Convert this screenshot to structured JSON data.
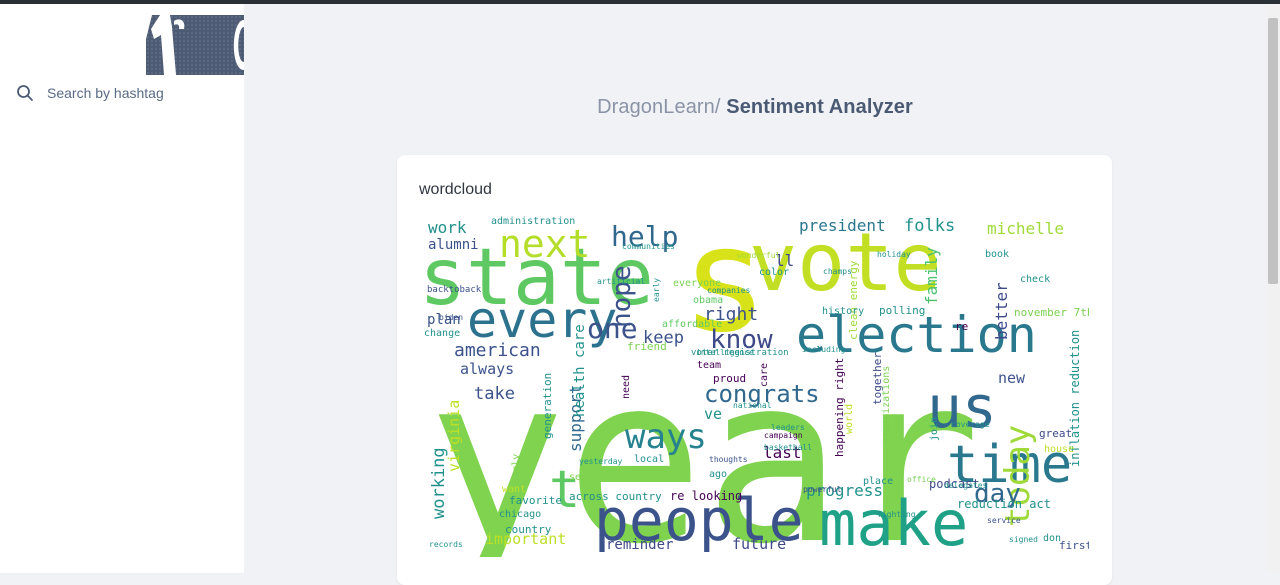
{
  "app": {
    "brand": "DragonLearn/",
    "page": "Sentiment Analyzer"
  },
  "sidebar": {
    "search": {
      "placeholder": "Search by hashtag",
      "value": ""
    }
  },
  "card": {
    "title": "wordcloud"
  },
  "wordcloud": {
    "words": [
      {
        "text": "year"
      },
      {
        "text": "s"
      },
      {
        "text": "vote"
      },
      {
        "text": "state"
      },
      {
        "text": "people"
      },
      {
        "text": "make"
      },
      {
        "text": "election"
      },
      {
        "text": "every"
      },
      {
        "text": "time"
      },
      {
        "text": "us"
      },
      {
        "text": "next"
      },
      {
        "text": "help"
      },
      {
        "text": "ways"
      },
      {
        "text": "today"
      },
      {
        "text": "day"
      },
      {
        "text": "t"
      },
      {
        "text": "know"
      },
      {
        "text": "congrats"
      },
      {
        "text": "hope"
      },
      {
        "text": "one"
      },
      {
        "text": "american"
      },
      {
        "text": "president"
      },
      {
        "text": "folks"
      },
      {
        "text": "michelle"
      },
      {
        "text": "work"
      },
      {
        "text": "alumni"
      },
      {
        "text": "plan"
      },
      {
        "text": "change"
      },
      {
        "text": "always"
      },
      {
        "text": "take"
      },
      {
        "text": "keep"
      },
      {
        "text": "right"
      },
      {
        "text": "family"
      },
      {
        "text": "better"
      },
      {
        "text": "november 7th"
      },
      {
        "text": "new"
      },
      {
        "text": "progress"
      },
      {
        "text": "reminder"
      },
      {
        "text": "future"
      },
      {
        "text": "important"
      },
      {
        "text": "working"
      },
      {
        "text": "virginia"
      },
      {
        "text": "support"
      },
      {
        "text": "health care"
      },
      {
        "text": "last"
      },
      {
        "text": "ve"
      },
      {
        "text": "ll"
      },
      {
        "text": "across country"
      },
      {
        "text": "re looking"
      },
      {
        "text": "reduction act"
      },
      {
        "text": "inflation reduction"
      },
      {
        "text": "podcast"
      },
      {
        "text": "polling"
      },
      {
        "text": "clean energy"
      },
      {
        "text": "history"
      },
      {
        "text": "affordable"
      },
      {
        "text": "obama"
      },
      {
        "text": "everyone"
      },
      {
        "text": "color"
      },
      {
        "text": "book"
      },
      {
        "text": "check"
      },
      {
        "text": "great"
      },
      {
        "text": "house"
      },
      {
        "text": "local"
      },
      {
        "text": "chicago"
      },
      {
        "text": "country"
      },
      {
        "text": "favorite"
      },
      {
        "text": "want"
      },
      {
        "text": "team"
      },
      {
        "text": "proud"
      },
      {
        "text": "ago"
      },
      {
        "text": "place"
      },
      {
        "text": "join"
      },
      {
        "text": "first"
      },
      {
        "text": "don"
      },
      {
        "text": "administration"
      },
      {
        "text": "happening right"
      },
      {
        "text": "together"
      },
      {
        "text": "generation"
      },
      {
        "text": "need"
      },
      {
        "text": "early"
      },
      {
        "text": "friend"
      },
      {
        "text": "re"
      },
      {
        "text": "voter registration"
      },
      {
        "text": "organizations"
      },
      {
        "text": "world"
      },
      {
        "text": "see"
      },
      {
        "text": "care"
      },
      {
        "text": "backtoback"
      },
      {
        "text": "biden"
      },
      {
        "text": "wonderful"
      },
      {
        "text": "holiday"
      },
      {
        "text": "champs"
      },
      {
        "text": "artificial"
      },
      {
        "text": "companies"
      },
      {
        "text": "leaders"
      },
      {
        "text": "thoughts"
      },
      {
        "text": "powerful"
      },
      {
        "text": "basketball"
      },
      {
        "text": "campaign"
      },
      {
        "text": "yesterday"
      },
      {
        "text": "including"
      },
      {
        "text": "office"
      },
      {
        "text": "fighting"
      },
      {
        "text": "service"
      },
      {
        "text": "signed"
      },
      {
        "text": "records"
      },
      {
        "text": "delegates"
      },
      {
        "text": "coverage"
      },
      {
        "text": "communities"
      },
      {
        "text": "early"
      },
      {
        "text": "intelligence"
      },
      {
        "text": "national"
      }
    ]
  }
}
